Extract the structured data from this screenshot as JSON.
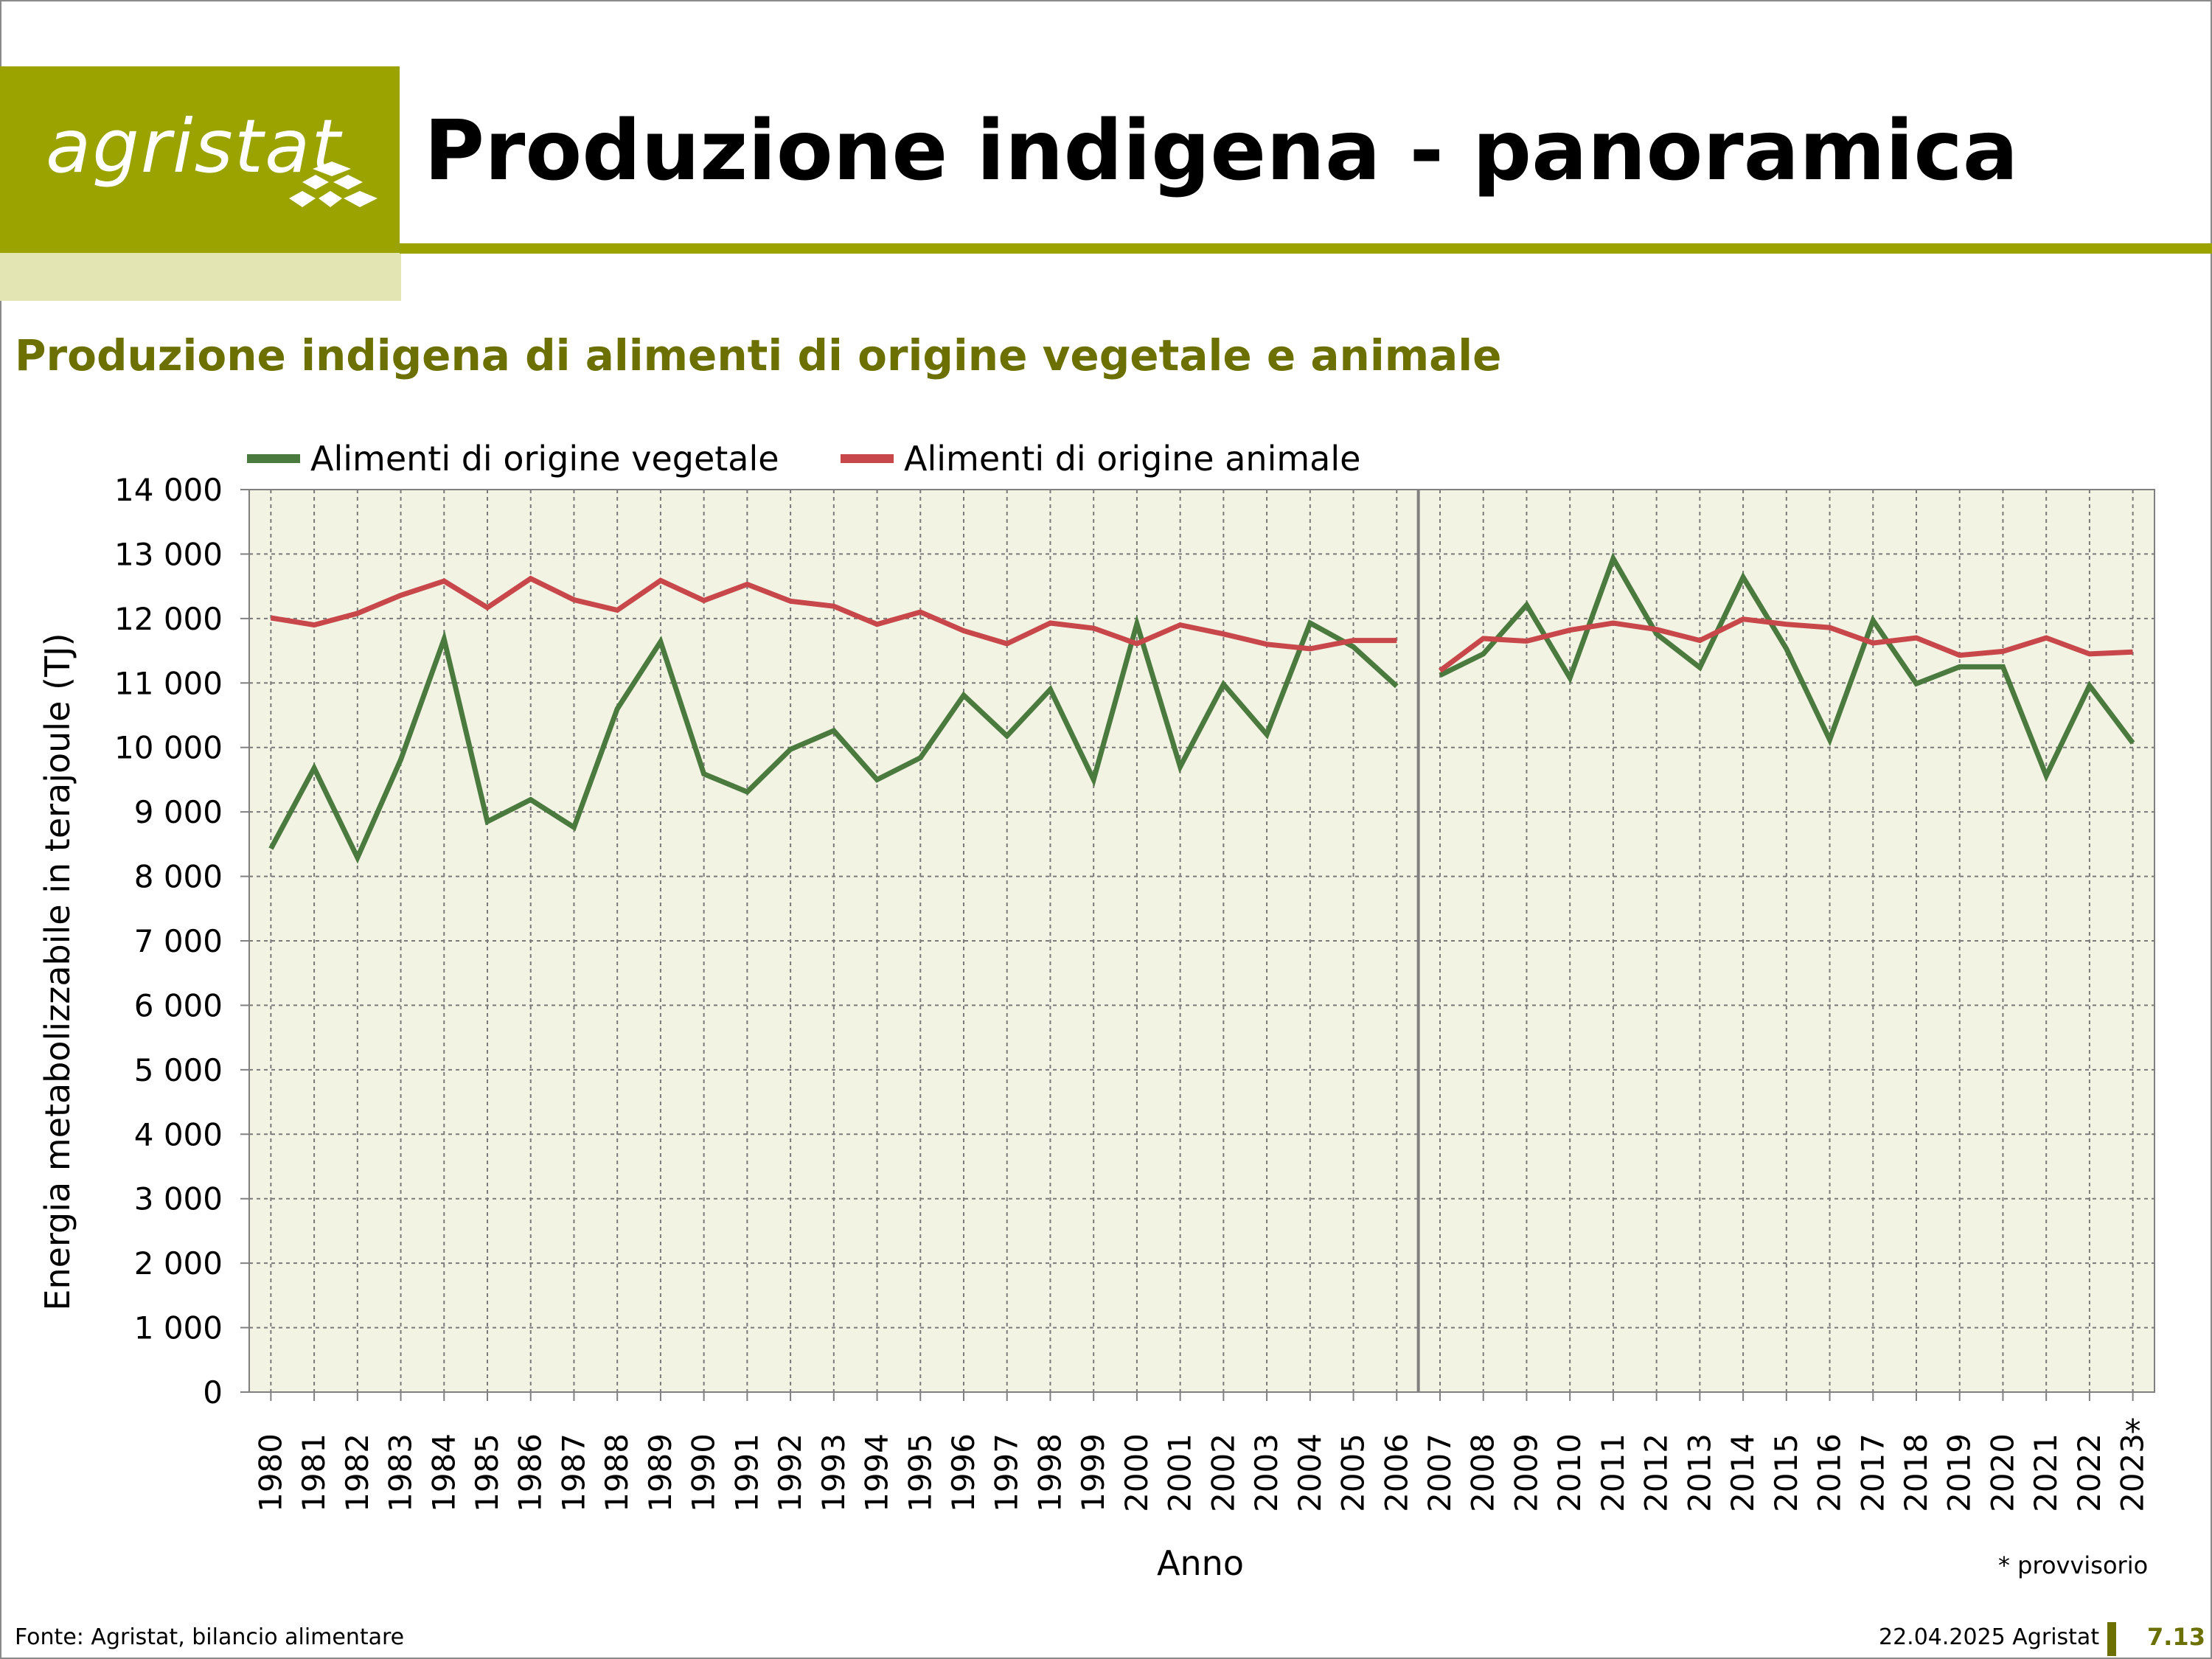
{
  "header": {
    "logo_text": "agristat",
    "title": "Produzione indigena - panoramica"
  },
  "colors": {
    "brand_olive": "#9aa300",
    "brand_pale": "#e3e6b3",
    "subtitle": "#6b7000",
    "plot_bg": "#f3f3e3",
    "vegetale": "#4b7a3f",
    "animale": "#c8474a"
  },
  "chart_data": {
    "type": "line",
    "title": "Produzione indigena di alimenti di origine vegetale e animale",
    "xlabel": "Anno",
    "ylabel": "Energia metabolizzabile in terajoule (TJ)",
    "ylim": [
      0,
      14000
    ],
    "y_ticks": [
      "0",
      "1 000",
      "2 000",
      "3 000",
      "4 000",
      "5 000",
      "6 000",
      "7 000",
      "8 000",
      "9 000",
      "10 000",
      "11 000",
      "12 000",
      "13 000",
      "14 000"
    ],
    "grid": true,
    "legend_position": "top-left",
    "series_break_after": "2006",
    "categories": [
      "1980",
      "1981",
      "1982",
      "1983",
      "1984",
      "1985",
      "1986",
      "1987",
      "1988",
      "1989",
      "1990",
      "1991",
      "1992",
      "1993",
      "1994",
      "1995",
      "1996",
      "1997",
      "1998",
      "1999",
      "2000",
      "2001",
      "2002",
      "2003",
      "2004",
      "2005",
      "2006",
      "2007",
      "2008",
      "2009",
      "2010",
      "2011",
      "2012",
      "2013",
      "2014",
      "2015",
      "2016",
      "2017",
      "2018",
      "2019",
      "2020",
      "2021",
      "2022",
      "2023"
    ],
    "provisional_marker": "*",
    "provisional_category": "2023",
    "series": [
      {
        "name": "Alimenti di origine vegetale",
        "color": "#4b7a3f",
        "values": [
          8430,
          9680,
          8290,
          9810,
          11680,
          8850,
          9190,
          8760,
          10600,
          11640,
          9590,
          9310,
          9970,
          10260,
          9500,
          9840,
          10810,
          10180,
          10900,
          9500,
          11920,
          9700,
          10980,
          10200,
          11930,
          11560,
          10950,
          11120,
          11450,
          12210,
          11080,
          12930,
          11760,
          11240,
          12640,
          11530,
          10120,
          11970,
          10990,
          11250,
          11250,
          9560,
          10960,
          10070
        ]
      },
      {
        "name": "Alimenti di origine animale",
        "color": "#c8474a",
        "values": [
          12010,
          11900,
          12080,
          12360,
          12580,
          12170,
          12620,
          12290,
          12130,
          12590,
          12280,
          12530,
          12270,
          12190,
          11910,
          12100,
          11810,
          11610,
          11930,
          11850,
          11610,
          11900,
          11760,
          11600,
          11530,
          11660,
          11660,
          11190,
          11690,
          11650,
          11820,
          11930,
          11830,
          11660,
          11990,
          11910,
          11860,
          11620,
          11700,
          11430,
          11490,
          11700,
          11450,
          11480
        ]
      }
    ],
    "footnote": "* provvisorio"
  },
  "footer": {
    "source": "Fonte: Agristat, bilancio alimentare",
    "date": "22.04.2025 Agristat",
    "page": "7.13"
  }
}
